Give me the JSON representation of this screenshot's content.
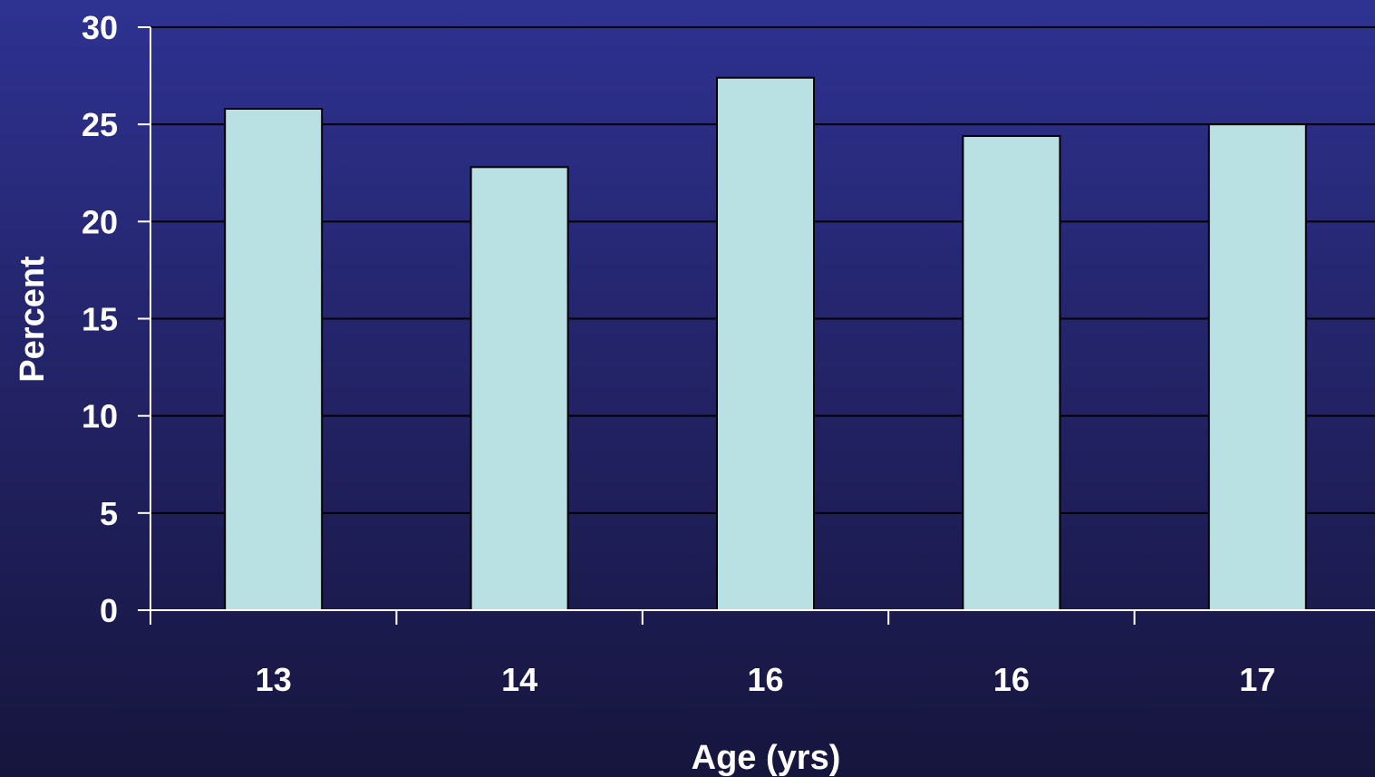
{
  "chart_data": {
    "type": "bar",
    "title": "",
    "xlabel": "Age (yrs)",
    "ylabel": "Percent",
    "categories": [
      "13",
      "14",
      "16",
      "16",
      "17"
    ],
    "values": [
      25.8,
      22.8,
      27.4,
      24.4,
      25.0
    ],
    "ylim": [
      0,
      30
    ],
    "yticks": [
      "0",
      "5",
      "10",
      "15",
      "20",
      "25",
      "30"
    ],
    "grid": true,
    "legend": "none",
    "colors": {
      "bar_fill": "#b9e0e2",
      "bar_stroke": "#000000",
      "gridline": "#000000",
      "axis": "#ffffff",
      "text": "#ffffff",
      "background_top": "#2e3291",
      "background_bottom": "#16153d"
    }
  }
}
